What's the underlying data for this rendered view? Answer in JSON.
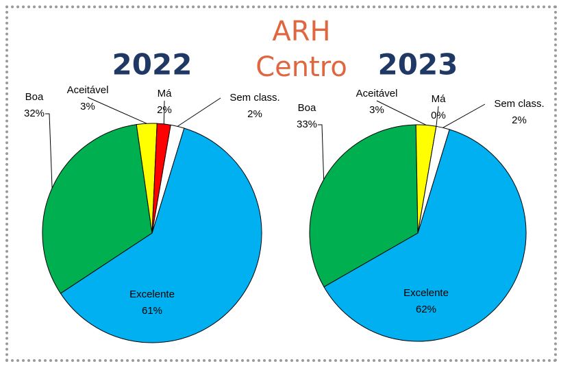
{
  "title": "ARH Centro",
  "chart_data": [
    {
      "type": "pie",
      "title": "2022",
      "categories": [
        "Excelente",
        "Boa",
        "Aceitável",
        "Má",
        "Sem class."
      ],
      "values": [
        61,
        32,
        3,
        2,
        2
      ],
      "value_labels": [
        "61%",
        "32%",
        "3%",
        "2%",
        "2%"
      ],
      "colors": [
        "#00b0f0",
        "#00b050",
        "#ffff00",
        "#ff0000",
        "#ffffff"
      ]
    },
    {
      "type": "pie",
      "title": "2023",
      "categories": [
        "Excelente",
        "Boa",
        "Aceitável",
        "Má",
        "Sem class."
      ],
      "values": [
        62,
        33,
        3,
        0,
        2
      ],
      "value_labels": [
        "62%",
        "33%",
        "3%",
        "0%",
        "2%"
      ],
      "colors": [
        "#00b0f0",
        "#00b050",
        "#ffff00",
        "#ff0000",
        "#ffffff"
      ]
    }
  ]
}
